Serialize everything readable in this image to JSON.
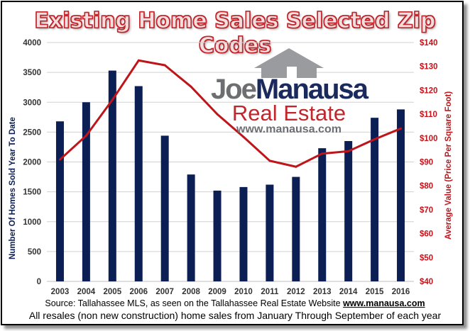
{
  "chart_data": {
    "type": "bar",
    "title": "Existing Home Sales Selected Zip Codes",
    "categories": [
      "2003",
      "2004",
      "2005",
      "2006",
      "2007",
      "2008",
      "2009",
      "2010",
      "2011",
      "2012",
      "2013",
      "2014",
      "2015",
      "2016"
    ],
    "series": [
      {
        "type": "bar",
        "axis": "left",
        "color": "#0c1f54",
        "values": [
          2680,
          3000,
          3530,
          3270,
          2440,
          1790,
          1520,
          1580,
          1620,
          1750,
          2230,
          2350,
          2740,
          2880
        ]
      },
      {
        "type": "line",
        "axis": "right",
        "color": "#c0141b",
        "values": [
          91,
          101,
          116,
          132.5,
          130.5,
          121.5,
          110,
          100.5,
          90.5,
          88,
          93.5,
          94.5,
          99.5,
          104
        ]
      }
    ],
    "ylabel": "Number Of Homes Sold Year To Date",
    "y2label": "Average Value (Price Per Square Foot)",
    "ylim": [
      0,
      4000
    ],
    "y2lim": [
      40,
      140
    ],
    "yticks": [
      "0",
      "500",
      "1000",
      "1500",
      "2000",
      "2500",
      "3000",
      "3500",
      "4000"
    ],
    "y2ticks": [
      "$40",
      "$50",
      "$60",
      "$70",
      "$80",
      "$90",
      "$100",
      "$110",
      "$120",
      "$130",
      "$140"
    ],
    "grid": true,
    "legend": "none"
  },
  "logo": {
    "joe": "Joe",
    "manausa": "Manausa",
    "real_estate": "Real Estate",
    "url": "www.manausa.com"
  },
  "source": {
    "prefix": "Source: Tallahassee MLS, as seen on the Tallahassee Real Estate Website",
    "url": "www.manausa.com"
  },
  "footnote": "All resales (non new construction) home sales from January Through September of each year"
}
